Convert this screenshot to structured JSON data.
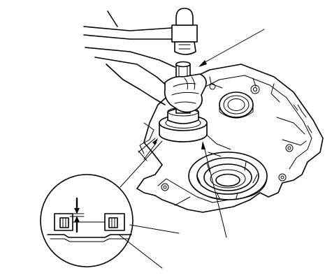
{
  "figure": {
    "parts": [
      "hammer",
      "hand",
      "driver-tool",
      "oil-seal",
      "transmission-housing",
      "bearing",
      "detail-inset"
    ]
  }
}
